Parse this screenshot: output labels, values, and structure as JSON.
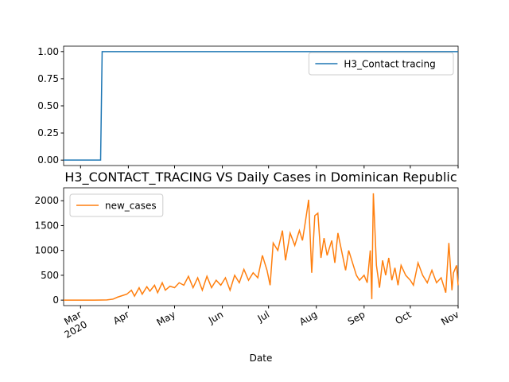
{
  "chart_data": [
    {
      "type": "line",
      "legend": "upper right",
      "xlim": [
        "2020-02-19",
        "2020-11-01"
      ],
      "ylim": [
        -0.05,
        1.05
      ],
      "yticks": [
        {
          "value": 0,
          "label": "0.00"
        },
        {
          "value": 0.25,
          "label": "0.25"
        },
        {
          "value": 0.5,
          "label": "0.50"
        },
        {
          "value": 0.75,
          "label": "0.75"
        },
        {
          "value": 1,
          "label": "1.00"
        }
      ],
      "x": [
        "2020-02-19",
        "2020-03-14",
        "2020-03-15",
        "2020-11-01"
      ],
      "series": [
        {
          "name": "H3_Contact tracing",
          "color": "#1f77b4",
          "values": [
            0,
            0,
            1,
            1
          ]
        }
      ]
    },
    {
      "type": "line",
      "title": "H3_CONTACT_TRACING VS Daily Cases in Dominican Republic",
      "xlabel": "Date",
      "legend": "upper left",
      "xlim": [
        "2020-02-19",
        "2020-11-01"
      ],
      "xticks": [
        {
          "value": "2020-03-01",
          "label": "Mar\n2020"
        },
        {
          "value": "2020-04-01",
          "label": "Apr"
        },
        {
          "value": "2020-05-01",
          "label": "May"
        },
        {
          "value": "2020-06-01",
          "label": "Jun"
        },
        {
          "value": "2020-07-01",
          "label": "Jul"
        },
        {
          "value": "2020-08-01",
          "label": "Aug"
        },
        {
          "value": "2020-09-01",
          "label": "Sep"
        },
        {
          "value": "2020-10-01",
          "label": "Oct"
        },
        {
          "value": "2020-11-01",
          "label": "Nov"
        }
      ],
      "ylim": [
        -110,
        2260
      ],
      "yticks": [
        0,
        500,
        1000,
        1500,
        2000
      ],
      "x": [
        "2020-02-19",
        "2020-03-01",
        "2020-03-10",
        "2020-03-18",
        "2020-03-22",
        "2020-03-25",
        "2020-03-28",
        "2020-03-31",
        "2020-04-03",
        "2020-04-05",
        "2020-04-08",
        "2020-04-10",
        "2020-04-13",
        "2020-04-15",
        "2020-04-18",
        "2020-04-20",
        "2020-04-23",
        "2020-04-25",
        "2020-04-28",
        "2020-05-01",
        "2020-05-04",
        "2020-05-07",
        "2020-05-10",
        "2020-05-13",
        "2020-05-16",
        "2020-05-19",
        "2020-05-22",
        "2020-05-25",
        "2020-05-28",
        "2020-05-31",
        "2020-06-03",
        "2020-06-06",
        "2020-06-09",
        "2020-06-12",
        "2020-06-15",
        "2020-06-18",
        "2020-06-21",
        "2020-06-24",
        "2020-06-27",
        "2020-06-30",
        "2020-07-02",
        "2020-07-04",
        "2020-07-07",
        "2020-07-10",
        "2020-07-12",
        "2020-07-15",
        "2020-07-18",
        "2020-07-21",
        "2020-07-23",
        "2020-07-25",
        "2020-07-27",
        "2020-07-29",
        "2020-07-31",
        "2020-08-02",
        "2020-08-04",
        "2020-08-06",
        "2020-08-08",
        "2020-08-11",
        "2020-08-13",
        "2020-08-15",
        "2020-08-18",
        "2020-08-20",
        "2020-08-22",
        "2020-08-25",
        "2020-08-27",
        "2020-08-29",
        "2020-09-01",
        "2020-09-03",
        "2020-09-05",
        "2020-09-06",
        "2020-09-07",
        "2020-09-09",
        "2020-09-11",
        "2020-09-13",
        "2020-09-15",
        "2020-09-17",
        "2020-09-19",
        "2020-09-21",
        "2020-09-23",
        "2020-09-25",
        "2020-09-28",
        "2020-10-01",
        "2020-10-03",
        "2020-10-06",
        "2020-10-09",
        "2020-10-12",
        "2020-10-15",
        "2020-10-18",
        "2020-10-21",
        "2020-10-24",
        "2020-10-26",
        "2020-10-28",
        "2020-10-29",
        "2020-10-31",
        "2020-11-01"
      ],
      "series": [
        {
          "name": "new_cases",
          "color": "#ff7f0e",
          "values": [
            0,
            0,
            0,
            5,
            20,
            60,
            90,
            120,
            200,
            80,
            250,
            120,
            270,
            180,
            300,
            150,
            350,
            200,
            280,
            250,
            350,
            300,
            480,
            250,
            450,
            200,
            480,
            250,
            400,
            300,
            450,
            200,
            500,
            350,
            620,
            400,
            550,
            450,
            900,
            600,
            300,
            1150,
            1000,
            1400,
            800,
            1350,
            1100,
            1400,
            1200,
            1600,
            2020,
            550,
            1700,
            1750,
            850,
            1250,
            900,
            1200,
            750,
            1350,
            900,
            600,
            1000,
            700,
            500,
            400,
            500,
            350,
            1000,
            20,
            2150,
            700,
            250,
            800,
            500,
            850,
            400,
            650,
            300,
            700,
            500,
            400,
            300,
            750,
            500,
            350,
            600,
            350,
            450,
            150,
            1150,
            200,
            550,
            700,
            300
          ]
        }
      ]
    }
  ]
}
